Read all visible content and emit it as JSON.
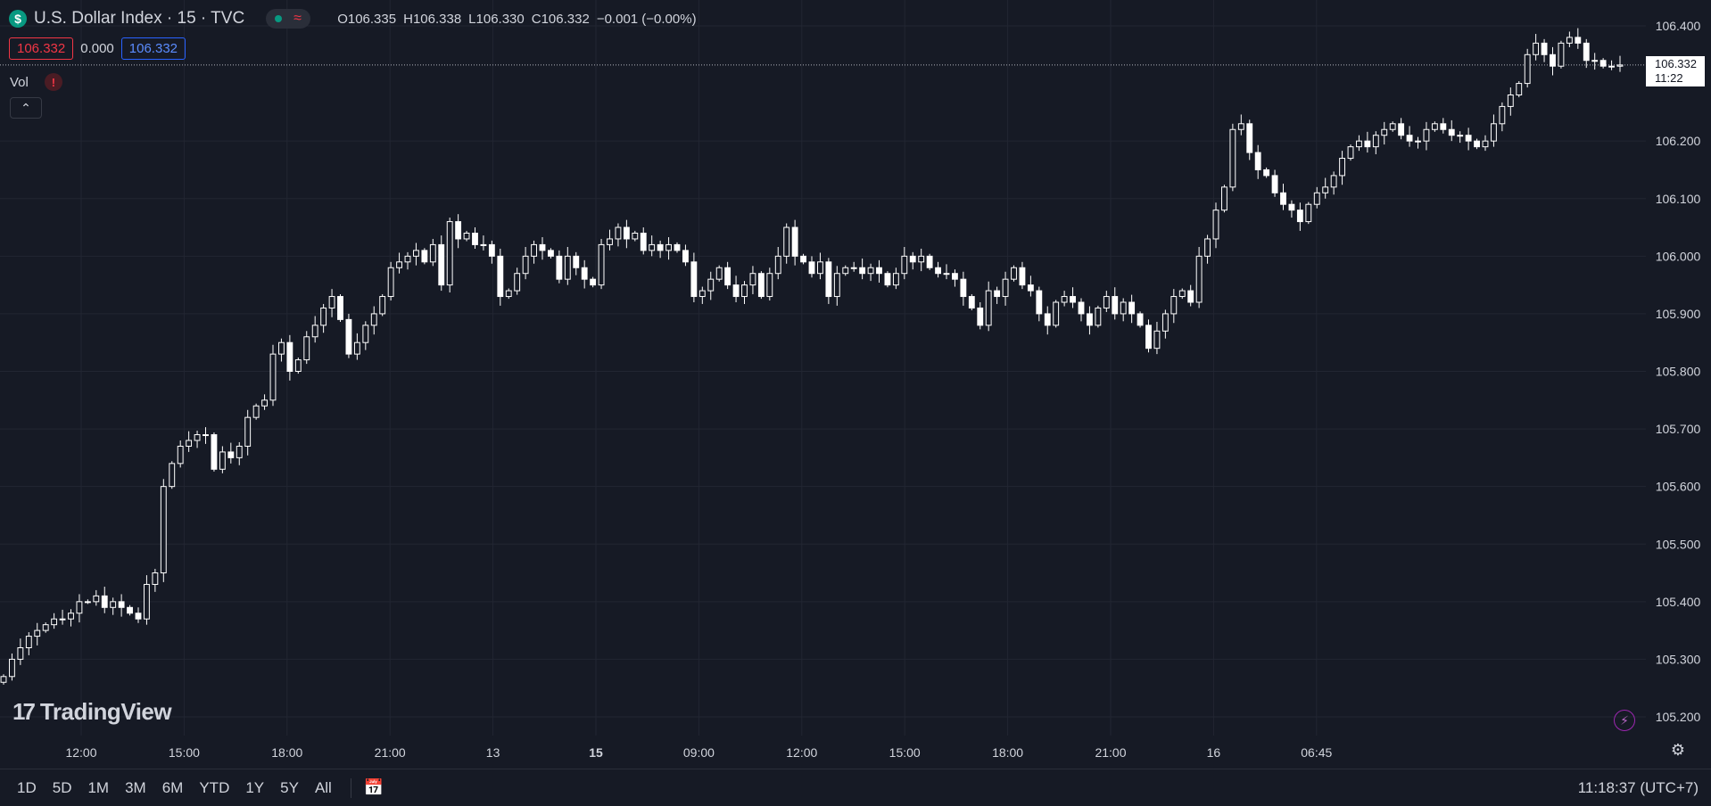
{
  "header": {
    "symbol_badge": "$",
    "title": "U.S. Dollar Index · 15 · TVC",
    "market_icons": [
      "market-open-dot-icon",
      "wave-icon"
    ],
    "ohlc": {
      "o_label": "O",
      "o_value": "106.335",
      "h_label": "H",
      "h_value": "106.338",
      "l_label": "L",
      "l_value": "106.330",
      "c_label": "C",
      "c_value": "106.332",
      "change": "−0.001 (−0.00%)"
    },
    "bid": "106.332",
    "spread": "0.000",
    "ask": "106.332",
    "vol_label": "Vol",
    "vol_warning": "!",
    "collapse_icon": "chevron-up-icon"
  },
  "price_tag": {
    "price": "106.332",
    "countdown": "11:22"
  },
  "logo_text": "TradingView",
  "logo_mark": "17",
  "bottom": {
    "ranges": [
      "1D",
      "5D",
      "1M",
      "3M",
      "6M",
      "YTD",
      "1Y",
      "5Y",
      "All"
    ],
    "clock": "11:18:37 (UTC+7)"
  },
  "colors": {
    "background": "#161a25",
    "grid": "#222632",
    "candle": "#ffffff",
    "accent": "#2962ff"
  },
  "chart_data": {
    "type": "candlestick",
    "title": "U.S. Dollar Index · 15 · TVC",
    "ylim": [
      105.16,
      106.44
    ],
    "yticks": [
      "106.400",
      "106.200",
      "106.100",
      "106.000",
      "105.900",
      "105.800",
      "105.700",
      "105.600",
      "105.500",
      "105.400",
      "105.300",
      "105.200"
    ],
    "xticks": [
      "12:00",
      "15:00",
      "18:00",
      "21:00",
      "13",
      "15",
      "09:00",
      "12:00",
      "15:00",
      "18:00",
      "21:00",
      "16",
      "06:45"
    ],
    "bold_xticks": [
      "15"
    ],
    "last_price": 106.332,
    "close": [
      105.27,
      105.3,
      105.32,
      105.34,
      105.35,
      105.36,
      105.37,
      105.37,
      105.38,
      105.4,
      105.4,
      105.41,
      105.39,
      105.4,
      105.39,
      105.38,
      105.37,
      105.43,
      105.45,
      105.6,
      105.64,
      105.67,
      105.68,
      105.69,
      105.69,
      105.63,
      105.66,
      105.65,
      105.67,
      105.72,
      105.74,
      105.75,
      105.83,
      105.85,
      105.8,
      105.82,
      105.86,
      105.88,
      105.91,
      105.93,
      105.89,
      105.83,
      105.85,
      105.88,
      105.9,
      105.93,
      105.98,
      105.99,
      106.0,
      106.01,
      105.99,
      106.02,
      105.95,
      106.06,
      106.03,
      106.04,
      106.02,
      106.02,
      106.0,
      105.93,
      105.94,
      105.97,
      106.0,
      106.02,
      106.01,
      106.0,
      105.96,
      106.0,
      105.98,
      105.96,
      105.95,
      106.02,
      106.03,
      106.05,
      106.03,
      106.04,
      106.01,
      106.02,
      106.01,
      106.02,
      106.01,
      105.99,
      105.93,
      105.94,
      105.96,
      105.98,
      105.95,
      105.93,
      105.95,
      105.97,
      105.93,
      105.97,
      106.0,
      106.05,
      106.0,
      105.99,
      105.97,
      105.99,
      105.93,
      105.97,
      105.98,
      105.98,
      105.97,
      105.98,
      105.97,
      105.95,
      105.97,
      106.0,
      105.99,
      106.0,
      105.98,
      105.97,
      105.97,
      105.96,
      105.93,
      105.91,
      105.88,
      105.94,
      105.93,
      105.96,
      105.98,
      105.95,
      105.94,
      105.9,
      105.88,
      105.92,
      105.93,
      105.92,
      105.9,
      105.88,
      105.91,
      105.93,
      105.9,
      105.92,
      105.9,
      105.88,
      105.84,
      105.87,
      105.9,
      105.93,
      105.94,
      105.92,
      106.0,
      106.03,
      106.08,
      106.12,
      106.22,
      106.23,
      106.18,
      106.15,
      106.14,
      106.11,
      106.09,
      106.08,
      106.06,
      106.09,
      106.11,
      106.12,
      106.14,
      106.17,
      106.19,
      106.2,
      106.19,
      106.21,
      106.22,
      106.23,
      106.21,
      106.2,
      106.2,
      106.22,
      106.23,
      106.22,
      106.21,
      106.21,
      106.2,
      106.19,
      106.2,
      106.23,
      106.26,
      106.28,
      106.3,
      106.35,
      106.37,
      106.35,
      106.33,
      106.37,
      106.38,
      106.37,
      106.34,
      106.34,
      106.33,
      106.33,
      106.332
    ]
  }
}
